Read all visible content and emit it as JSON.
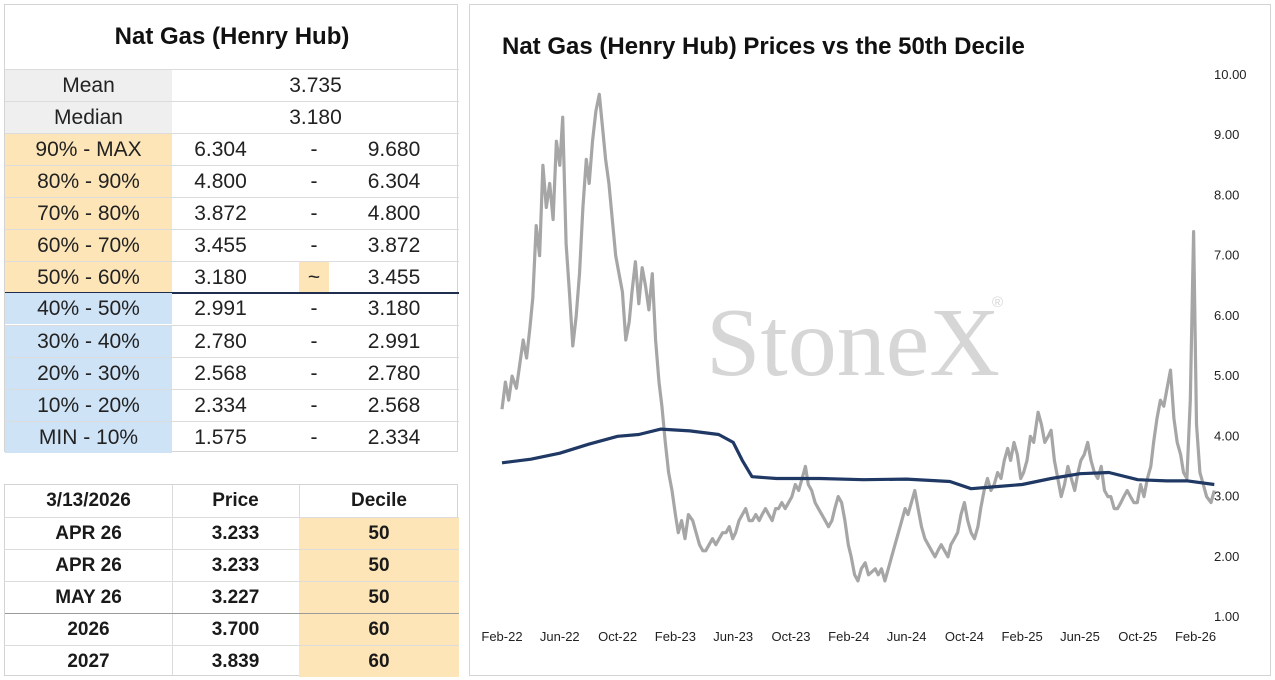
{
  "stats_table": {
    "title": "Nat Gas (Henry Hub)",
    "mean_label": "Mean",
    "mean_value": "3.735",
    "median_label": "Median",
    "median_value": "3.180",
    "rows": [
      {
        "label": "90% - MAX",
        "low": "6.304",
        "sep": "-",
        "high": "9.680",
        "zone": "upper"
      },
      {
        "label": "80% - 90%",
        "low": "4.800",
        "sep": "-",
        "high": "6.304",
        "zone": "upper"
      },
      {
        "label": "70% - 80%",
        "low": "3.872",
        "sep": "-",
        "high": "4.800",
        "zone": "upper"
      },
      {
        "label": "60% - 70%",
        "low": "3.455",
        "sep": "-",
        "high": "3.872",
        "zone": "upper"
      },
      {
        "label": "50% - 60%",
        "low": "3.180",
        "sep": "~",
        "high": "3.455",
        "zone": "upper"
      },
      {
        "label": "40% - 50%",
        "low": "2.991",
        "sep": "-",
        "high": "3.180",
        "zone": "lower"
      },
      {
        "label": "30% - 40%",
        "low": "2.780",
        "sep": "-",
        "high": "2.991",
        "zone": "lower"
      },
      {
        "label": "20% - 30%",
        "low": "2.568",
        "sep": "-",
        "high": "2.780",
        "zone": "lower"
      },
      {
        "label": "10% - 20%",
        "low": "2.334",
        "sep": "-",
        "high": "2.568",
        "zone": "lower"
      },
      {
        "label": "MIN - 10%",
        "low": "1.575",
        "sep": "-",
        "high": "2.334",
        "zone": "lower"
      }
    ]
  },
  "decile_table": {
    "headers": [
      "3/13/2026",
      "Price",
      "Decile"
    ],
    "rows": [
      {
        "contract": "APR 26",
        "price": "3.233",
        "decile": "50"
      },
      {
        "contract": "APR 26",
        "price": "3.233",
        "decile": "50"
      },
      {
        "contract": "MAY 26",
        "price": "3.227",
        "decile": "50"
      },
      {
        "contract": "2026",
        "price": "3.700",
        "decile": "60"
      },
      {
        "contract": "2027",
        "price": "3.839",
        "decile": "60"
      }
    ]
  },
  "colors": {
    "upper_zone": "#fde5b8",
    "lower_zone": "#cfe3f7",
    "price_line": "#a6a6a6",
    "decile_line": "#1f3864",
    "watermark": "#d6d6d6"
  },
  "chart_data": {
    "type": "line",
    "title": "Nat Gas (Henry Hub) Prices vs the 50th Decile",
    "watermark": "StoneX",
    "watermark_mark": "®",
    "y_axis_side": "right",
    "ylim": [
      1.0,
      10.0
    ],
    "y_ticks": [
      "1.00",
      "2.00",
      "3.00",
      "4.00",
      "5.00",
      "6.00",
      "7.00",
      "8.00",
      "9.00",
      "10.00"
    ],
    "x_range": [
      "2022-02",
      "2026-03"
    ],
    "x_ticks": [
      "Feb-22",
      "Jun-22",
      "Oct-22",
      "Feb-23",
      "Jun-23",
      "Oct-23",
      "Feb-24",
      "Jun-24",
      "Oct-24",
      "Feb-25",
      "Jun-25",
      "Oct-25",
      "Feb-26"
    ],
    "grid": false,
    "legend": "none",
    "series": [
      {
        "values": [
          [
            "2022-02-01",
            4.45
          ],
          [
            "2022-02-08",
            4.9
          ],
          [
            "2022-02-15",
            4.6
          ],
          [
            "2022-02-22",
            5.0
          ],
          [
            "2022-03-01",
            4.8
          ],
          [
            "2022-03-08",
            5.2
          ],
          [
            "2022-03-15",
            5.6
          ],
          [
            "2022-03-22",
            5.3
          ],
          [
            "2022-03-29",
            5.8
          ],
          [
            "2022-04-05",
            6.3
          ],
          [
            "2022-04-12",
            7.5
          ],
          [
            "2022-04-19",
            7.0
          ],
          [
            "2022-04-26",
            8.5
          ],
          [
            "2022-05-03",
            7.8
          ],
          [
            "2022-05-10",
            8.2
          ],
          [
            "2022-05-17",
            7.6
          ],
          [
            "2022-05-24",
            8.9
          ],
          [
            "2022-05-31",
            8.5
          ],
          [
            "2022-06-07",
            9.3
          ],
          [
            "2022-06-14",
            7.2
          ],
          [
            "2022-06-21",
            6.4
          ],
          [
            "2022-06-28",
            5.5
          ],
          [
            "2022-07-05",
            6.0
          ],
          [
            "2022-07-12",
            6.7
          ],
          [
            "2022-07-19",
            7.8
          ],
          [
            "2022-07-26",
            8.6
          ],
          [
            "2022-08-02",
            8.2
          ],
          [
            "2022-08-09",
            8.9
          ],
          [
            "2022-08-16",
            9.4
          ],
          [
            "2022-08-23",
            9.68
          ],
          [
            "2022-08-30",
            9.1
          ],
          [
            "2022-09-06",
            8.6
          ],
          [
            "2022-09-13",
            8.2
          ],
          [
            "2022-09-20",
            7.6
          ],
          [
            "2022-09-27",
            7.0
          ],
          [
            "2022-10-04",
            6.7
          ],
          [
            "2022-10-11",
            6.4
          ],
          [
            "2022-10-18",
            5.6
          ],
          [
            "2022-10-25",
            5.9
          ],
          [
            "2022-11-01",
            6.4
          ],
          [
            "2022-11-08",
            6.9
          ],
          [
            "2022-11-15",
            6.2
          ],
          [
            "2022-11-22",
            6.8
          ],
          [
            "2022-11-29",
            6.5
          ],
          [
            "2022-12-06",
            6.1
          ],
          [
            "2022-12-13",
            6.7
          ],
          [
            "2022-12-20",
            5.6
          ],
          [
            "2022-12-27",
            4.9
          ],
          [
            "2023-01-03",
            4.5
          ],
          [
            "2023-01-10",
            3.9
          ],
          [
            "2023-01-17",
            3.4
          ],
          [
            "2023-01-24",
            3.1
          ],
          [
            "2023-01-31",
            2.7
          ],
          [
            "2023-02-07",
            2.4
          ],
          [
            "2023-02-14",
            2.6
          ],
          [
            "2023-02-21",
            2.3
          ],
          [
            "2023-02-28",
            2.7
          ],
          [
            "2023-03-07",
            2.6
          ],
          [
            "2023-03-14",
            2.4
          ],
          [
            "2023-03-21",
            2.2
          ],
          [
            "2023-03-28",
            2.1
          ],
          [
            "2023-04-04",
            2.1
          ],
          [
            "2023-04-11",
            2.2
          ],
          [
            "2023-04-18",
            2.3
          ],
          [
            "2023-04-25",
            2.2
          ],
          [
            "2023-05-02",
            2.3
          ],
          [
            "2023-05-09",
            2.4
          ],
          [
            "2023-05-16",
            2.4
          ],
          [
            "2023-05-23",
            2.5
          ],
          [
            "2023-05-30",
            2.3
          ],
          [
            "2023-06-06",
            2.4
          ],
          [
            "2023-06-13",
            2.6
          ],
          [
            "2023-06-20",
            2.7
          ],
          [
            "2023-06-27",
            2.8
          ],
          [
            "2023-07-04",
            2.6
          ],
          [
            "2023-07-11",
            2.6
          ],
          [
            "2023-07-18",
            2.7
          ],
          [
            "2023-07-25",
            2.6
          ],
          [
            "2023-08-01",
            2.7
          ],
          [
            "2023-08-08",
            2.8
          ],
          [
            "2023-08-15",
            2.7
          ],
          [
            "2023-08-22",
            2.6
          ],
          [
            "2023-08-29",
            2.8
          ],
          [
            "2023-09-05",
            2.8
          ],
          [
            "2023-09-12",
            2.9
          ],
          [
            "2023-09-19",
            2.8
          ],
          [
            "2023-09-26",
            2.9
          ],
          [
            "2023-10-03",
            3.0
          ],
          [
            "2023-10-10",
            3.2
          ],
          [
            "2023-10-17",
            3.1
          ],
          [
            "2023-10-24",
            3.3
          ],
          [
            "2023-10-31",
            3.5
          ],
          [
            "2023-11-07",
            3.2
          ],
          [
            "2023-11-14",
            3.1
          ],
          [
            "2023-11-21",
            2.9
          ],
          [
            "2023-11-28",
            2.8
          ],
          [
            "2023-12-05",
            2.7
          ],
          [
            "2023-12-12",
            2.6
          ],
          [
            "2023-12-19",
            2.5
          ],
          [
            "2023-12-26",
            2.6
          ],
          [
            "2024-01-02",
            2.8
          ],
          [
            "2024-01-09",
            3.0
          ],
          [
            "2024-01-16",
            2.9
          ],
          [
            "2024-01-23",
            2.6
          ],
          [
            "2024-01-30",
            2.2
          ],
          [
            "2024-02-06",
            2.0
          ],
          [
            "2024-02-13",
            1.7
          ],
          [
            "2024-02-20",
            1.6
          ],
          [
            "2024-02-27",
            1.8
          ],
          [
            "2024-03-05",
            1.9
          ],
          [
            "2024-03-12",
            1.7
          ],
          [
            "2024-03-19",
            1.75
          ],
          [
            "2024-03-26",
            1.8
          ],
          [
            "2024-04-02",
            1.7
          ],
          [
            "2024-04-09",
            1.8
          ],
          [
            "2024-04-16",
            1.6
          ],
          [
            "2024-04-23",
            1.8
          ],
          [
            "2024-04-30",
            2.0
          ],
          [
            "2024-05-07",
            2.2
          ],
          [
            "2024-05-14",
            2.4
          ],
          [
            "2024-05-21",
            2.6
          ],
          [
            "2024-05-28",
            2.8
          ],
          [
            "2024-06-04",
            2.7
          ],
          [
            "2024-06-11",
            2.9
          ],
          [
            "2024-06-18",
            3.1
          ],
          [
            "2024-06-25",
            2.8
          ],
          [
            "2024-07-02",
            2.5
          ],
          [
            "2024-07-09",
            2.3
          ],
          [
            "2024-07-16",
            2.2
          ],
          [
            "2024-07-23",
            2.1
          ],
          [
            "2024-07-30",
            2.0
          ],
          [
            "2024-08-06",
            2.1
          ],
          [
            "2024-08-13",
            2.2
          ],
          [
            "2024-08-20",
            2.1
          ],
          [
            "2024-08-27",
            2.0
          ],
          [
            "2024-09-03",
            2.2
          ],
          [
            "2024-09-10",
            2.3
          ],
          [
            "2024-09-17",
            2.4
          ],
          [
            "2024-09-24",
            2.7
          ],
          [
            "2024-10-01",
            2.9
          ],
          [
            "2024-10-08",
            2.6
          ],
          [
            "2024-10-15",
            2.4
          ],
          [
            "2024-10-22",
            2.3
          ],
          [
            "2024-10-29",
            2.5
          ],
          [
            "2024-11-05",
            2.8
          ],
          [
            "2024-11-12",
            3.1
          ],
          [
            "2024-11-19",
            3.3
          ],
          [
            "2024-11-26",
            3.1
          ],
          [
            "2024-12-03",
            3.2
          ],
          [
            "2024-12-10",
            3.4
          ],
          [
            "2024-12-17",
            3.3
          ],
          [
            "2024-12-24",
            3.6
          ],
          [
            "2024-12-31",
            3.8
          ],
          [
            "2025-01-07",
            3.6
          ],
          [
            "2025-01-14",
            3.9
          ],
          [
            "2025-01-21",
            3.7
          ],
          [
            "2025-01-28",
            3.3
          ],
          [
            "2025-02-04",
            3.4
          ],
          [
            "2025-02-11",
            3.6
          ],
          [
            "2025-02-18",
            4.0
          ],
          [
            "2025-02-25",
            3.9
          ],
          [
            "2025-03-04",
            4.4
          ],
          [
            "2025-03-11",
            4.2
          ],
          [
            "2025-03-18",
            3.9
          ],
          [
            "2025-03-25",
            4.0
          ],
          [
            "2025-04-01",
            4.1
          ],
          [
            "2025-04-08",
            3.6
          ],
          [
            "2025-04-15",
            3.3
          ],
          [
            "2025-04-22",
            3.0
          ],
          [
            "2025-04-29",
            3.2
          ],
          [
            "2025-05-06",
            3.5
          ],
          [
            "2025-05-13",
            3.3
          ],
          [
            "2025-05-20",
            3.1
          ],
          [
            "2025-05-27",
            3.4
          ],
          [
            "2025-06-03",
            3.6
          ],
          [
            "2025-06-10",
            3.7
          ],
          [
            "2025-06-17",
            3.9
          ],
          [
            "2025-06-24",
            3.6
          ],
          [
            "2025-07-01",
            3.4
          ],
          [
            "2025-07-08",
            3.3
          ],
          [
            "2025-07-15",
            3.5
          ],
          [
            "2025-07-22",
            3.1
          ],
          [
            "2025-07-29",
            3.0
          ],
          [
            "2025-08-05",
            3.0
          ],
          [
            "2025-08-12",
            2.8
          ],
          [
            "2025-08-19",
            2.8
          ],
          [
            "2025-08-26",
            2.9
          ],
          [
            "2025-09-02",
            3.0
          ],
          [
            "2025-09-09",
            3.1
          ],
          [
            "2025-09-16",
            3.0
          ],
          [
            "2025-09-23",
            2.9
          ],
          [
            "2025-09-30",
            2.9
          ],
          [
            "2025-10-07",
            3.2
          ],
          [
            "2025-10-14",
            3.0
          ],
          [
            "2025-10-21",
            3.3
          ],
          [
            "2025-10-28",
            3.5
          ],
          [
            "2025-11-04",
            3.9
          ],
          [
            "2025-11-11",
            4.3
          ],
          [
            "2025-11-18",
            4.6
          ],
          [
            "2025-11-25",
            4.5
          ],
          [
            "2025-12-02",
            4.8
          ],
          [
            "2025-12-09",
            5.1
          ],
          [
            "2025-12-16",
            4.3
          ],
          [
            "2025-12-23",
            3.9
          ],
          [
            "2025-12-30",
            3.7
          ],
          [
            "2026-01-06",
            3.4
          ],
          [
            "2026-01-13",
            3.3
          ],
          [
            "2026-01-20",
            4.6
          ],
          [
            "2026-01-27",
            7.4
          ],
          [
            "2026-02-03",
            4.2
          ],
          [
            "2026-02-10",
            3.4
          ],
          [
            "2026-02-17",
            3.2
          ],
          [
            "2026-02-24",
            3.0
          ],
          [
            "2026-03-03",
            2.9
          ],
          [
            "2026-03-10",
            3.1
          ]
        ]
      },
      {
        "values": [
          [
            "2022-02-01",
            3.56
          ],
          [
            "2022-04-01",
            3.62
          ],
          [
            "2022-06-01",
            3.72
          ],
          [
            "2022-08-01",
            3.87
          ],
          [
            "2022-10-01",
            4.0
          ],
          [
            "2022-11-15",
            4.03
          ],
          [
            "2023-01-01",
            4.12
          ],
          [
            "2023-03-01",
            4.09
          ],
          [
            "2023-05-01",
            4.03
          ],
          [
            "2023-06-01",
            3.9
          ],
          [
            "2023-06-20",
            3.6
          ],
          [
            "2023-07-10",
            3.33
          ],
          [
            "2023-09-01",
            3.3
          ],
          [
            "2023-12-01",
            3.3
          ],
          [
            "2024-03-01",
            3.28
          ],
          [
            "2024-06-01",
            3.29
          ],
          [
            "2024-09-01",
            3.25
          ],
          [
            "2024-10-15",
            3.13
          ],
          [
            "2024-12-01",
            3.16
          ],
          [
            "2025-02-01",
            3.2
          ],
          [
            "2025-04-01",
            3.3
          ],
          [
            "2025-06-01",
            3.38
          ],
          [
            "2025-08-01",
            3.4
          ],
          [
            "2025-10-01",
            3.28
          ],
          [
            "2025-12-01",
            3.26
          ],
          [
            "2026-01-15",
            3.26
          ],
          [
            "2026-03-10",
            3.2
          ]
        ]
      }
    ]
  }
}
